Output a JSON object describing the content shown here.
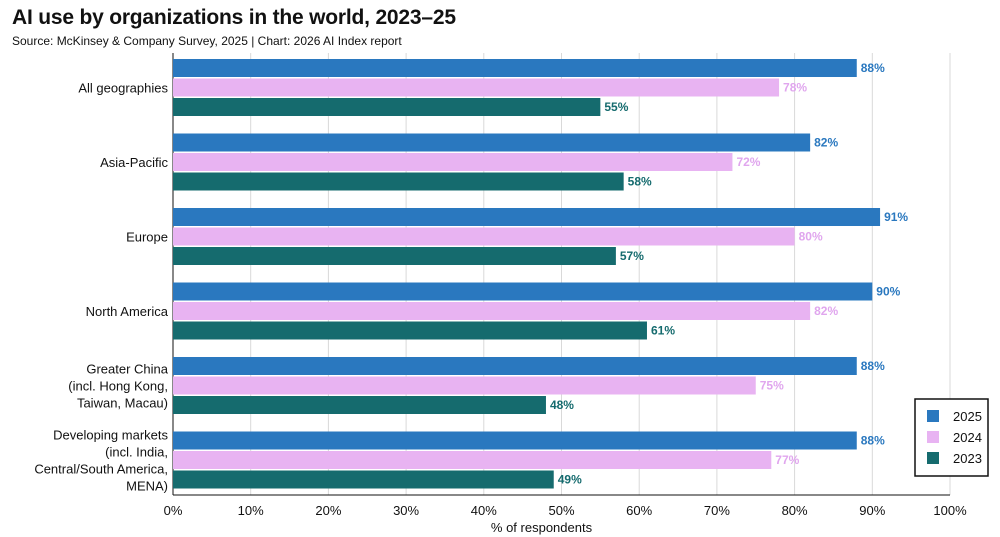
{
  "title": "AI use by organizations in the world, 2023–25",
  "subtitle": "Source: McKinsey & Company Survey, 2025 | Chart: 2026 AI Index report",
  "chart_data": {
    "type": "bar",
    "orientation": "horizontal",
    "categories": [
      [
        "All geographies"
      ],
      [
        "Asia-Pacific"
      ],
      [
        "Europe"
      ],
      [
        "North America"
      ],
      [
        "Greater China",
        "(incl. Hong Kong,",
        "Taiwan, Macau)"
      ],
      [
        "Developing markets",
        "(incl. India,",
        "Central/South America,",
        "MENA)"
      ]
    ],
    "series": [
      {
        "name": "2025",
        "color": "#2a78bf",
        "label_color": "#2a78bf",
        "values": [
          88,
          82,
          91,
          90,
          88,
          88
        ]
      },
      {
        "name": "2024",
        "color": "#e8b3f2",
        "label_color": "#e0a6ee",
        "values": [
          78,
          72,
          80,
          82,
          75,
          77
        ]
      },
      {
        "name": "2023",
        "color": "#156b6e",
        "label_color": "#156b6e",
        "values": [
          55,
          58,
          57,
          61,
          48,
          49
        ]
      }
    ],
    "xlabel": "% of respondents",
    "xlim": [
      0,
      100
    ],
    "xticks": [
      "0%",
      "10%",
      "20%",
      "30%",
      "40%",
      "50%",
      "60%",
      "70%",
      "80%",
      "90%",
      "100%"
    ],
    "value_suffix": "%",
    "grid": "vertical",
    "legend": {
      "placement": "bottom-right",
      "entries": [
        "2025",
        "2024",
        "2023"
      ]
    }
  }
}
